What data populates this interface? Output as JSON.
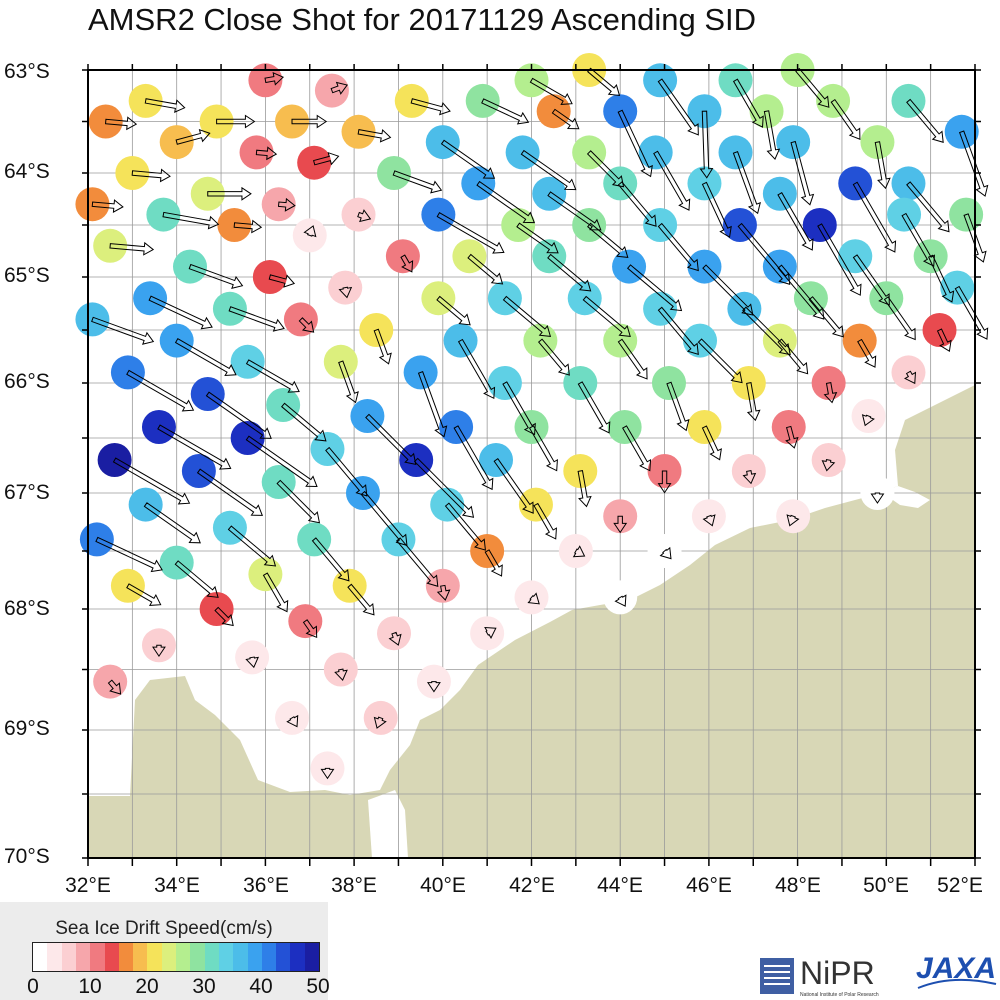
{
  "title": "AMSR2 Close Shot for 20171129 Ascending SID",
  "lat_labels": [
    "63°S",
    "64°S",
    "65°S",
    "66°S",
    "67°S",
    "68°S",
    "69°S",
    "70°S"
  ],
  "lon_labels": [
    "32°E",
    "34°E",
    "36°E",
    "38°E",
    "40°E",
    "42°E",
    "44°E",
    "46°E",
    "48°E",
    "50°E",
    "52°E"
  ],
  "legend": {
    "title": "Sea Ice Drift Speed(cm/s)",
    "ticks": [
      "0",
      "10",
      "20",
      "30",
      "40",
      "50"
    ],
    "colors": [
      "#ffffff",
      "#fde8ea",
      "#fbcfd2",
      "#f6a6ab",
      "#f07a80",
      "#e84a4f",
      "#f28c3c",
      "#f7bd4f",
      "#f5e35a",
      "#dcef7d",
      "#b4ee8f",
      "#8fe3a0",
      "#6fdcc3",
      "#5fd0e5",
      "#4cbde9",
      "#3aa2ef",
      "#2e7fe8",
      "#2351d6",
      "#1c2fc1",
      "#1a1ea2"
    ]
  },
  "colors": {
    "land": "#d8d7b6",
    "grid": "#9a9a9a",
    "frame": "#000000"
  },
  "logos": {
    "nipr": "NiPR",
    "nipr_sub": "National Institute of Polar Research",
    "jaxa": "JAXA"
  },
  "vectors": [
    {
      "lat": -63.3,
      "lon": 33.3,
      "spd": 22,
      "dir": 100
    },
    {
      "lat": -63.5,
      "lon": 34.9,
      "spd": 21,
      "dir": 90
    },
    {
      "lat": -63.1,
      "lon": 36.0,
      "spd": 10,
      "dir": 80
    },
    {
      "lat": -63.5,
      "lon": 36.6,
      "spd": 19,
      "dir": 90
    },
    {
      "lat": -63.2,
      "lon": 37.5,
      "spd": 9,
      "dir": 70
    },
    {
      "lat": -63.3,
      "lon": 39.3,
      "spd": 22,
      "dir": 105
    },
    {
      "lat": -63.3,
      "lon": 40.9,
      "spd": 28,
      "dir": 115
    },
    {
      "lat": -63.1,
      "lon": 42.0,
      "spd": 26,
      "dir": 120
    },
    {
      "lat": -63.4,
      "lon": 42.5,
      "spd": 17,
      "dir": 125
    },
    {
      "lat": -63.0,
      "lon": 43.3,
      "spd": 22,
      "dir": 130
    },
    {
      "lat": -63.4,
      "lon": 44.0,
      "spd": 40,
      "dir": 155
    },
    {
      "lat": -63.1,
      "lon": 44.9,
      "spd": 37,
      "dir": 145
    },
    {
      "lat": -63.4,
      "lon": 45.9,
      "spd": 37,
      "dir": 178
    },
    {
      "lat": -63.1,
      "lon": 46.6,
      "spd": 30,
      "dir": 150
    },
    {
      "lat": -63.4,
      "lon": 47.3,
      "spd": 27,
      "dir": 170
    },
    {
      "lat": -63.0,
      "lon": 48.0,
      "spd": 27,
      "dir": 140
    },
    {
      "lat": -63.3,
      "lon": 48.8,
      "spd": 26,
      "dir": 145
    },
    {
      "lat": -63.3,
      "lon": 50.5,
      "spd": 30,
      "dir": 140
    },
    {
      "lat": -63.6,
      "lon": 51.7,
      "spd": 38,
      "dir": 160
    },
    {
      "lat": -63.5,
      "lon": 32.4,
      "spd": 17,
      "dir": 95
    },
    {
      "lat": -63.7,
      "lon": 34.0,
      "spd": 19,
      "dir": 75
    },
    {
      "lat": -63.8,
      "lon": 35.8,
      "spd": 11,
      "dir": 95
    },
    {
      "lat": -63.6,
      "lon": 38.1,
      "spd": 18,
      "dir": 100
    },
    {
      "lat": -63.7,
      "lon": 40.0,
      "spd": 35,
      "dir": 125
    },
    {
      "lat": -63.8,
      "lon": 41.8,
      "spd": 36,
      "dir": 125
    },
    {
      "lat": -63.8,
      "lon": 43.3,
      "spd": 27,
      "dir": 135
    },
    {
      "lat": -63.8,
      "lon": 44.8,
      "spd": 37,
      "dir": 150
    },
    {
      "lat": -63.8,
      "lon": 46.6,
      "spd": 36,
      "dir": 160
    },
    {
      "lat": -63.7,
      "lon": 47.9,
      "spd": 36,
      "dir": 165
    },
    {
      "lat": -63.7,
      "lon": 49.8,
      "spd": 26,
      "dir": 170
    },
    {
      "lat": -64.0,
      "lon": 33.0,
      "spd": 21,
      "dir": 95
    },
    {
      "lat": -64.2,
      "lon": 34.7,
      "spd": 24,
      "dir": 90
    },
    {
      "lat": -63.9,
      "lon": 37.1,
      "spd": 14,
      "dir": 75
    },
    {
      "lat": -64.0,
      "lon": 38.9,
      "spd": 28,
      "dir": 110
    },
    {
      "lat": -64.1,
      "lon": 40.8,
      "spd": 38,
      "dir": 125
    },
    {
      "lat": -64.2,
      "lon": 42.4,
      "spd": 35,
      "dir": 125
    },
    {
      "lat": -64.1,
      "lon": 44.0,
      "spd": 31,
      "dir": 140
    },
    {
      "lat": -64.1,
      "lon": 45.9,
      "spd": 33,
      "dir": 155
    },
    {
      "lat": -64.2,
      "lon": 47.6,
      "spd": 36,
      "dir": 150
    },
    {
      "lat": -64.1,
      "lon": 49.3,
      "spd": 44,
      "dir": 150
    },
    {
      "lat": -64.1,
      "lon": 50.5,
      "spd": 35,
      "dir": 140
    },
    {
      "lat": -64.3,
      "lon": 32.1,
      "spd": 17,
      "dir": 95
    },
    {
      "lat": -64.4,
      "lon": 33.7,
      "spd": 31,
      "dir": 100
    },
    {
      "lat": -64.3,
      "lon": 36.3,
      "spd": 9,
      "dir": 95
    },
    {
      "lat": -64.5,
      "lon": 35.3,
      "spd": 15,
      "dir": 95
    },
    {
      "lat": -64.4,
      "lon": 38.1,
      "spd": 7,
      "dir": 110
    },
    {
      "lat": -64.4,
      "lon": 39.9,
      "spd": 42,
      "dir": 120
    },
    {
      "lat": -64.5,
      "lon": 41.7,
      "spd": 27,
      "dir": 125
    },
    {
      "lat": -64.5,
      "lon": 43.3,
      "spd": 28,
      "dir": 130
    },
    {
      "lat": -64.5,
      "lon": 44.9,
      "spd": 33,
      "dir": 140
    },
    {
      "lat": -64.5,
      "lon": 46.7,
      "spd": 43,
      "dir": 140
    },
    {
      "lat": -64.5,
      "lon": 48.5,
      "spd": 45,
      "dir": 150
    },
    {
      "lat": -64.4,
      "lon": 50.4,
      "spd": 33,
      "dir": 150
    },
    {
      "lat": -64.4,
      "lon": 51.8,
      "spd": 28,
      "dir": 160
    },
    {
      "lat": -64.7,
      "lon": 32.5,
      "spd": 24,
      "dir": 95
    },
    {
      "lat": -64.6,
      "lon": 37.0,
      "spd": 3,
      "dir": 20
    },
    {
      "lat": -64.8,
      "lon": 39.1,
      "spd": 10,
      "dir": 150
    },
    {
      "lat": -64.8,
      "lon": 40.6,
      "spd": 24,
      "dir": 130
    },
    {
      "lat": -64.8,
      "lon": 42.4,
      "spd": 30,
      "dir": 130
    },
    {
      "lat": -64.9,
      "lon": 44.2,
      "spd": 38,
      "dir": 130
    },
    {
      "lat": -64.9,
      "lon": 45.9,
      "spd": 38,
      "dir": 135
    },
    {
      "lat": -64.9,
      "lon": 47.6,
      "spd": 38,
      "dir": 140
    },
    {
      "lat": -64.8,
      "lon": 49.3,
      "spd": 33,
      "dir": 145
    },
    {
      "lat": -64.8,
      "lon": 51.0,
      "spd": 28,
      "dir": 155
    },
    {
      "lat": -64.9,
      "lon": 34.3,
      "spd": 31,
      "dir": 110
    },
    {
      "lat": -65.0,
      "lon": 36.1,
      "spd": 14,
      "dir": 105
    },
    {
      "lat": -65.1,
      "lon": 37.8,
      "spd": 5,
      "dir": 170
    },
    {
      "lat": -65.2,
      "lon": 33.4,
      "spd": 38,
      "dir": 115
    },
    {
      "lat": -65.2,
      "lon": 39.9,
      "spd": 23,
      "dir": 130
    },
    {
      "lat": -65.2,
      "lon": 41.4,
      "spd": 33,
      "dir": 130
    },
    {
      "lat": -65.2,
      "lon": 43.2,
      "spd": 33,
      "dir": 130
    },
    {
      "lat": -65.3,
      "lon": 44.9,
      "spd": 33,
      "dir": 140
    },
    {
      "lat": -65.3,
      "lon": 46.8,
      "spd": 36,
      "dir": 135
    },
    {
      "lat": -65.2,
      "lon": 48.3,
      "spd": 28,
      "dir": 140
    },
    {
      "lat": -65.2,
      "lon": 50.0,
      "spd": 28,
      "dir": 145
    },
    {
      "lat": -65.1,
      "lon": 51.6,
      "spd": 33,
      "dir": 150
    },
    {
      "lat": -65.4,
      "lon": 32.1,
      "spd": 36,
      "dir": 110
    },
    {
      "lat": -65.3,
      "lon": 35.2,
      "spd": 32,
      "dir": 110
    },
    {
      "lat": -65.4,
      "lon": 36.8,
      "spd": 10,
      "dir": 135
    },
    {
      "lat": -65.5,
      "lon": 38.5,
      "spd": 20,
      "dir": 160
    },
    {
      "lat": -65.6,
      "lon": 40.4,
      "spd": 37,
      "dir": 150
    },
    {
      "lat": -65.6,
      "lon": 42.2,
      "spd": 25,
      "dir": 140
    },
    {
      "lat": -65.6,
      "lon": 44.0,
      "spd": 26,
      "dir": 145
    },
    {
      "lat": -65.6,
      "lon": 45.8,
      "spd": 33,
      "dir": 135
    },
    {
      "lat": -65.6,
      "lon": 47.6,
      "spd": 24,
      "dir": 140
    },
    {
      "lat": -65.6,
      "lon": 49.4,
      "spd": 17,
      "dir": 150
    },
    {
      "lat": -65.5,
      "lon": 51.2,
      "spd": 13,
      "dir": 155
    },
    {
      "lat": -65.6,
      "lon": 34.0,
      "spd": 38,
      "dir": 120
    },
    {
      "lat": -65.8,
      "lon": 35.6,
      "spd": 33,
      "dir": 120
    },
    {
      "lat": -65.8,
      "lon": 37.7,
      "spd": 24,
      "dir": 160
    },
    {
      "lat": -65.9,
      "lon": 32.9,
      "spd": 42,
      "dir": 120
    },
    {
      "lat": -65.9,
      "lon": 39.5,
      "spd": 38,
      "dir": 160
    },
    {
      "lat": -66.0,
      "lon": 41.4,
      "spd": 33,
      "dir": 150
    },
    {
      "lat": -66.0,
      "lon": 43.1,
      "spd": 32,
      "dir": 150
    },
    {
      "lat": -66.0,
      "lon": 45.1,
      "spd": 28,
      "dir": 160
    },
    {
      "lat": -66.0,
      "lon": 46.9,
      "spd": 21,
      "dir": 170
    },
    {
      "lat": -66.0,
      "lon": 48.7,
      "spd": 11,
      "dir": 170
    },
    {
      "lat": -65.9,
      "lon": 50.5,
      "spd": 7,
      "dir": 150
    },
    {
      "lat": -66.1,
      "lon": 34.7,
      "spd": 43,
      "dir": 125
    },
    {
      "lat": -66.2,
      "lon": 36.4,
      "spd": 31,
      "dir": 130
    },
    {
      "lat": -66.3,
      "lon": 38.3,
      "spd": 38,
      "dir": 135
    },
    {
      "lat": -66.4,
      "lon": 33.6,
      "spd": 46,
      "dir": 120
    },
    {
      "lat": -66.4,
      "lon": 40.3,
      "spd": 40,
      "dir": 150
    },
    {
      "lat": -66.4,
      "lon": 42.0,
      "spd": 28,
      "dir": 150
    },
    {
      "lat": -66.4,
      "lon": 44.1,
      "spd": 28,
      "dir": 150
    },
    {
      "lat": -66.4,
      "lon": 45.9,
      "spd": 20,
      "dir": 155
    },
    {
      "lat": -66.4,
      "lon": 47.8,
      "spd": 12,
      "dir": 165
    },
    {
      "lat": -66.3,
      "lon": 49.6,
      "spd": 4,
      "dir": 200
    },
    {
      "lat": -66.5,
      "lon": 35.6,
      "spd": 47,
      "dir": 125
    },
    {
      "lat": -66.6,
      "lon": 37.4,
      "spd": 34,
      "dir": 140
    },
    {
      "lat": -66.7,
      "lon": 32.6,
      "spd": 48,
      "dir": 120
    },
    {
      "lat": -66.7,
      "lon": 39.4,
      "spd": 45,
      "dir": 135
    },
    {
      "lat": -66.7,
      "lon": 41.2,
      "spd": 36,
      "dir": 145
    },
    {
      "lat": -66.8,
      "lon": 43.1,
      "spd": 20,
      "dir": 170
    },
    {
      "lat": -66.8,
      "lon": 45.0,
      "spd": 12,
      "dir": 180
    },
    {
      "lat": -66.8,
      "lon": 46.9,
      "spd": 7,
      "dir": 170
    },
    {
      "lat": -66.7,
      "lon": 48.7,
      "spd": 6,
      "dir": 190
    },
    {
      "lat": -66.8,
      "lon": 34.5,
      "spd": 43,
      "dir": 125
    },
    {
      "lat": -66.9,
      "lon": 36.3,
      "spd": 32,
      "dir": 135
    },
    {
      "lat": -67.0,
      "lon": 38.2,
      "spd": 38,
      "dir": 140
    },
    {
      "lat": -67.1,
      "lon": 33.3,
      "spd": 37,
      "dir": 125
    },
    {
      "lat": -67.1,
      "lon": 40.1,
      "spd": 33,
      "dir": 140
    },
    {
      "lat": -67.1,
      "lon": 42.1,
      "spd": 22,
      "dir": 150
    },
    {
      "lat": -67.2,
      "lon": 44.0,
      "spd": 9,
      "dir": 180
    },
    {
      "lat": -67.2,
      "lon": 46.0,
      "spd": 3,
      "dir": 160
    },
    {
      "lat": -67.2,
      "lon": 47.9,
      "spd": 3,
      "dir": 200
    },
    {
      "lat": -67.0,
      "lon": 49.8,
      "spd": 2,
      "dir": 180
    },
    {
      "lat": -67.3,
      "lon": 35.2,
      "spd": 33,
      "dir": 130
    },
    {
      "lat": -67.4,
      "lon": 37.1,
      "spd": 30,
      "dir": 140
    },
    {
      "lat": -67.4,
      "lon": 32.2,
      "spd": 40,
      "dir": 115
    },
    {
      "lat": -67.4,
      "lon": 39.0,
      "spd": 34,
      "dir": 140
    },
    {
      "lat": -67.5,
      "lon": 41.0,
      "spd": 16,
      "dir": 150
    },
    {
      "lat": -67.5,
      "lon": 43.0,
      "spd": 3,
      "dir": 120
    },
    {
      "lat": -67.5,
      "lon": 45.0,
      "spd": 2,
      "dir": 140
    },
    {
      "lat": -67.6,
      "lon": 34.0,
      "spd": 30,
      "dir": 130
    },
    {
      "lat": -67.7,
      "lon": 36.0,
      "spd": 24,
      "dir": 150
    },
    {
      "lat": -67.8,
      "lon": 37.9,
      "spd": 21,
      "dir": 140
    },
    {
      "lat": -67.8,
      "lon": 32.9,
      "spd": 21,
      "dir": 120
    },
    {
      "lat": -67.8,
      "lon": 40.0,
      "spd": 8,
      "dir": 170
    },
    {
      "lat": -67.9,
      "lon": 42.0,
      "spd": 3,
      "dir": 130
    },
    {
      "lat": -67.9,
      "lon": 44.0,
      "spd": 2,
      "dir": 150
    },
    {
      "lat": -68.0,
      "lon": 34.9,
      "spd": 13,
      "dir": 135
    },
    {
      "lat": -68.1,
      "lon": 36.9,
      "spd": 11,
      "dir": 145
    },
    {
      "lat": -68.2,
      "lon": 38.9,
      "spd": 7,
      "dir": 160
    },
    {
      "lat": -68.2,
      "lon": 41.0,
      "spd": 3,
      "dir": 60
    },
    {
      "lat": -68.3,
      "lon": 33.6,
      "spd": 6,
      "dir": 180
    },
    {
      "lat": -68.4,
      "lon": 35.7,
      "spd": 4,
      "dir": 170
    },
    {
      "lat": -68.5,
      "lon": 37.7,
      "spd": 6,
      "dir": 170
    },
    {
      "lat": -68.6,
      "lon": 39.8,
      "spd": 3,
      "dir": 180
    },
    {
      "lat": -68.6,
      "lon": 32.5,
      "spd": 9,
      "dir": 140
    },
    {
      "lat": -68.9,
      "lon": 36.6,
      "spd": 3,
      "dir": 150
    },
    {
      "lat": -68.9,
      "lon": 38.6,
      "spd": 6,
      "dir": 200
    },
    {
      "lat": -69.3,
      "lon": 37.4,
      "spd": 3,
      "dir": 180
    }
  ]
}
